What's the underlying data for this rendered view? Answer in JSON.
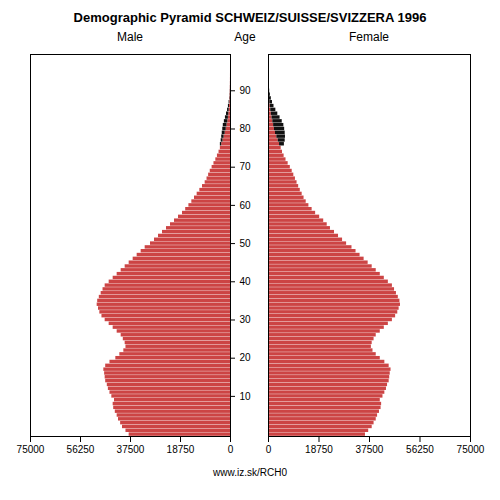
{
  "chart_data": {
    "type": "bar",
    "orientation": "horizontal",
    "stacked": true,
    "title": "Demographic Pyramid SCHWEIZ/SUISSE/SVIZZERA 1996",
    "ylabel": "Age",
    "annotations": [
      "www.iz.sk/RCH0"
    ],
    "y": [
      0,
      1,
      2,
      3,
      4,
      5,
      6,
      7,
      8,
      9,
      10,
      11,
      12,
      13,
      14,
      15,
      16,
      17,
      18,
      19,
      20,
      21,
      22,
      23,
      24,
      25,
      26,
      27,
      28,
      29,
      30,
      31,
      32,
      33,
      34,
      35,
      36,
      37,
      38,
      39,
      40,
      41,
      42,
      43,
      44,
      45,
      46,
      47,
      48,
      49,
      50,
      51,
      52,
      53,
      54,
      55,
      56,
      57,
      58,
      59,
      60,
      61,
      62,
      63,
      64,
      65,
      66,
      67,
      68,
      69,
      70,
      71,
      72,
      73,
      74,
      75,
      76,
      77,
      78,
      79,
      80,
      81,
      82,
      83,
      84,
      85,
      86,
      87,
      88,
      89,
      90,
      91,
      92,
      93,
      94,
      95,
      96,
      97,
      98,
      99
    ],
    "ylim": [
      -0.5,
      99.5
    ],
    "yticks": [
      10,
      20,
      30,
      40,
      50,
      60,
      70,
      80,
      90
    ],
    "panels": [
      {
        "title": "Male",
        "xlim": [
          75000,
          0
        ],
        "xticks": [
          75000,
          56250,
          37500,
          18750,
          0
        ],
        "series": [
          {
            "color": "#cc4444",
            "values": [
              38000,
              39200,
              40500,
              41200,
              42000,
              42500,
              43200,
              43800,
              44000,
              43500,
              44500,
              45200,
              45800,
              46200,
              46800,
              47000,
              47200,
              47500,
              46800,
              45200,
              43000,
              41500,
              40000,
              39200,
              39500,
              40200,
              41000,
              42500,
              44000,
              45500,
              47000,
              48200,
              49000,
              49500,
              50000,
              49800,
              49200,
              48500,
              47800,
              47000,
              45500,
              44000,
              42500,
              41000,
              39500,
              38000,
              36500,
              35000,
              33500,
              32000,
              30000,
              28500,
              27000,
              25500,
              24000,
              22500,
              21000,
              19500,
              18000,
              16800,
              15600,
              14500,
              13500,
              12500,
              11500,
              10500,
              9500,
              8800,
              8200,
              7600,
              6900,
              6200,
              5500,
              4900,
              4300,
              3800,
              3300,
              2800,
              2400,
              2000,
              1600,
              1300,
              1000,
              800,
              650,
              500,
              380,
              280,
              200,
              140,
              95,
              65,
              40,
              25,
              15,
              8,
              4,
              2,
              1,
              0
            ]
          },
          {
            "color": "#111111",
            "values": [
              0,
              0,
              0,
              0,
              0,
              0,
              0,
              0,
              0,
              0,
              0,
              0,
              0,
              0,
              0,
              0,
              0,
              0,
              0,
              0,
              0,
              0,
              0,
              0,
              0,
              0,
              0,
              0,
              0,
              0,
              0,
              0,
              0,
              0,
              0,
              0,
              0,
              0,
              0,
              0,
              0,
              0,
              0,
              0,
              0,
              0,
              0,
              0,
              0,
              0,
              0,
              0,
              0,
              0,
              0,
              0,
              0,
              0,
              0,
              0,
              0,
              0,
              0,
              0,
              0,
              0,
              0,
              0,
              0,
              0,
              0,
              0,
              0,
              0,
              0,
              0,
              500,
              700,
              900,
              1100,
              1300,
              1400,
              1300,
              1100,
              850,
              600,
              400,
              250,
              150,
              90,
              50,
              25,
              12,
              6,
              2,
              1,
              0,
              0,
              0,
              0
            ]
          }
        ]
      },
      {
        "title": "Female",
        "xlim": [
          0,
          75000
        ],
        "xticks": [
          0,
          18750,
          37500,
          56250,
          75000
        ],
        "series": [
          {
            "color": "#cc4444",
            "values": [
              36000,
              37200,
              38500,
              39200,
              40000,
              40500,
              41200,
              41800,
              42000,
              41500,
              42500,
              43200,
              43800,
              44200,
              44800,
              45000,
              45200,
              45500,
              44800,
              43200,
              41500,
              40000,
              38800,
              38200,
              38500,
              39200,
              40000,
              41500,
              43000,
              44500,
              46000,
              47200,
              48000,
              48500,
              49000,
              48800,
              48200,
              47500,
              46800,
              46000,
              44500,
              43000,
              41500,
              40000,
              38500,
              37000,
              35500,
              34000,
              32500,
              31000,
              29000,
              27500,
              26000,
              24500,
              23000,
              21800,
              20500,
              19000,
              17500,
              16200,
              15000,
              14000,
              13200,
              12500,
              11800,
              11200,
              10600,
              10000,
              9400,
              8800,
              8100,
              7300,
              6500,
              5800,
              5200,
              4700,
              4100,
              3600,
              3100,
              2600,
              2200,
              1900,
              1600,
              1300,
              1050,
              830,
              640,
              480,
              350,
              240,
              160,
              105,
              65,
              38,
              22,
              12,
              6,
              3,
              1,
              0
            ]
          },
          {
            "color": "#111111",
            "values": [
              0,
              0,
              0,
              0,
              0,
              0,
              0,
              0,
              0,
              0,
              0,
              0,
              0,
              0,
              0,
              0,
              0,
              0,
              0,
              0,
              0,
              0,
              0,
              0,
              0,
              0,
              0,
              0,
              0,
              0,
              0,
              0,
              0,
              0,
              0,
              0,
              0,
              0,
              0,
              0,
              0,
              0,
              0,
              0,
              0,
              0,
              0,
              0,
              0,
              0,
              0,
              0,
              0,
              0,
              0,
              0,
              0,
              0,
              0,
              0,
              0,
              0,
              0,
              0,
              0,
              0,
              0,
              0,
              0,
              0,
              0,
              0,
              0,
              0,
              0,
              0,
              1800,
              2600,
              3200,
              3600,
              3800,
              3800,
              3500,
              3000,
              2400,
              1900,
              1400,
              1000,
              700,
              450,
              280,
              165,
              95,
              52,
              28,
              14,
              6,
              2,
              1,
              0
            ]
          }
        ]
      }
    ]
  }
}
